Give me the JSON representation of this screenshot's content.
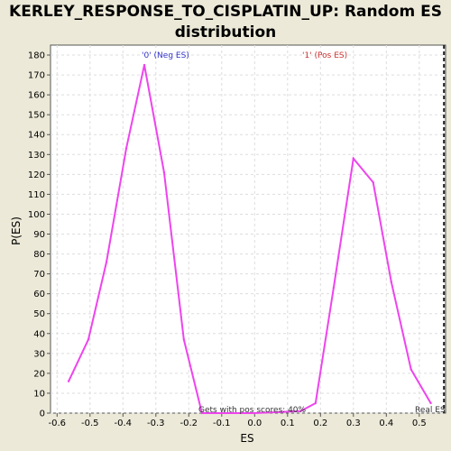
{
  "title_line1": "KERLEY_RESPONSE_TO_CISPLATIN_UP: Random ES",
  "title_line2": "distribution",
  "chart_data": {
    "type": "line",
    "xlabel": "ES",
    "ylabel": "P(ES)",
    "xlim": [
      -0.62,
      0.58
    ],
    "ylim": [
      0,
      185
    ],
    "x_ticks": [
      "-0.6",
      "-0.5",
      "-0.4",
      "-0.3",
      "-0.2",
      "-0.1",
      "0.0",
      "0.1",
      "0.2",
      "0.3",
      "0.4",
      "0.5"
    ],
    "y_ticks": [
      "0",
      "10",
      "20",
      "30",
      "40",
      "50",
      "60",
      "70",
      "80",
      "90",
      "100",
      "110",
      "120",
      "130",
      "140",
      "150",
      "160",
      "170",
      "180"
    ],
    "grid": true,
    "series": [
      {
        "color": "#ee44ee",
        "x": [
          -0.565,
          -0.505,
          -0.45,
          -0.39,
          -0.335,
          -0.275,
          -0.215,
          -0.16,
          0.0,
          0.14,
          0.185,
          0.24,
          0.3,
          0.36,
          0.415,
          0.475,
          0.535
        ],
        "y": [
          16,
          37,
          76,
          133,
          175,
          121,
          37,
          0,
          0,
          1,
          5,
          63,
          128,
          116,
          66,
          22,
          5
        ]
      }
    ],
    "real_es_x": 0.575,
    "annotations": {
      "neg": {
        "text": "'0' (Neg ES)",
        "color": "#3333cc"
      },
      "pos": {
        "text": "'1' (Pos ES)",
        "color": "#cc3333"
      },
      "gets": {
        "text": "Gets with pos scores: 40%",
        "color": "#333333"
      },
      "real": {
        "text": "Real ES",
        "color": "#333333"
      }
    }
  }
}
